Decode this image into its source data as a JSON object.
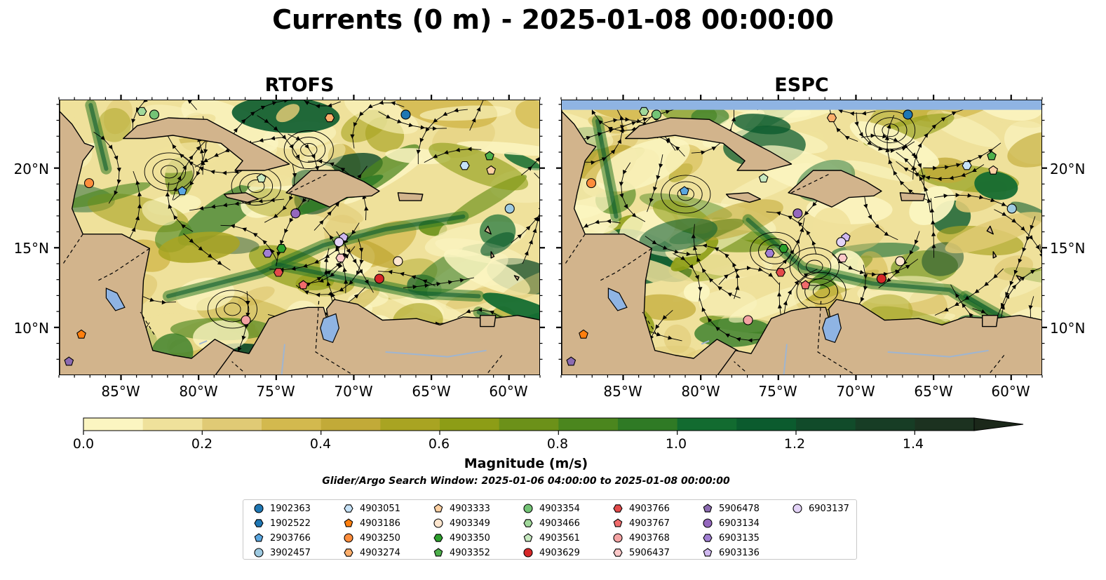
{
  "title": "Currents (0 m) - 2025-01-08 00:00:00",
  "panels": [
    {
      "title": "RTOFS",
      "model": "rtofs"
    },
    {
      "title": "ESPC",
      "model": "espc"
    }
  ],
  "map_extent": {
    "lon": [
      -89,
      -58
    ],
    "lat": [
      7,
      24.3
    ]
  },
  "x_ticks": [
    {
      "value": -85,
      "label": "85°W"
    },
    {
      "value": -80,
      "label": "80°W"
    },
    {
      "value": -75,
      "label": "75°W"
    },
    {
      "value": -70,
      "label": "70°W"
    },
    {
      "value": -65,
      "label": "65°W"
    },
    {
      "value": -60,
      "label": "60°W"
    }
  ],
  "y_ticks": [
    {
      "value": 20,
      "label": "20°N"
    },
    {
      "value": 15,
      "label": "15°N"
    },
    {
      "value": 10,
      "label": "10°N"
    }
  ],
  "colorbar": {
    "label": "Magnitude (m/s)",
    "range": [
      0,
      1.5
    ],
    "extend": "max",
    "ticks": [
      "0.0",
      "0.2",
      "0.4",
      "0.6",
      "0.8",
      "1.0",
      "1.2",
      "1.4"
    ],
    "colors": [
      "#fbf5c1",
      "#efe19b",
      "#e0ca75",
      "#d3b94e",
      "#c2aa38",
      "#a9a422",
      "#8d9d16",
      "#6c9119",
      "#4b861e",
      "#2f7a25",
      "#126b30",
      "#0b5b2e",
      "#114b2a",
      "#173d25",
      "#1c3220",
      "#1b281a"
    ]
  },
  "search_window": "Glider/Argo Search Window: 2025-01-06 04:00:00 to 2025-01-08 00:00:00",
  "colors": {
    "land": "#d2b48c",
    "water_feature": "#8fb4e3",
    "rivers": "#9fb5d0"
  },
  "floats": [
    {
      "id": "1902363",
      "marker": "circle",
      "color": "#1f77b4",
      "lon": -66.7,
      "lat": 23.4
    },
    {
      "id": "1902522",
      "marker": "hexagon",
      "color": "#1f77b4",
      "lon": null,
      "lat": null
    },
    {
      "id": "2903766",
      "marker": "pentagon",
      "color": "#5aa6e0",
      "lon": -81.1,
      "lat": 18.6
    },
    {
      "id": "3902457",
      "marker": "circle",
      "color": "#9ecae1",
      "lon": -60.0,
      "lat": 17.5
    },
    {
      "id": "4903051",
      "marker": "hexagon",
      "color": "#c6e2f7",
      "lon": -62.9,
      "lat": 20.2
    },
    {
      "id": "4903186",
      "marker": "pentagon",
      "color": "#ff7f0e",
      "lon": -87.6,
      "lat": 9.6
    },
    {
      "id": "4903250",
      "marker": "circle",
      "color": "#fd8d3c",
      "lon": -87.1,
      "lat": 19.1
    },
    {
      "id": "4903274",
      "marker": "hexagon",
      "color": "#fdae6b",
      "lon": -71.6,
      "lat": 23.2
    },
    {
      "id": "4903333",
      "marker": "pentagon",
      "color": "#fdd0a2",
      "lon": -61.2,
      "lat": 19.9
    },
    {
      "id": "4903349",
      "marker": "circle",
      "color": "#fee6ce",
      "lon": -67.2,
      "lat": 14.2
    },
    {
      "id": "4903350",
      "marker": "hexagon",
      "color": "#2ca02c",
      "lon": -74.7,
      "lat": 15.0
    },
    {
      "id": "4903352",
      "marker": "pentagon",
      "color": "#4daf4a",
      "lon": -61.3,
      "lat": 20.8
    },
    {
      "id": "4903354",
      "marker": "circle",
      "color": "#74c476",
      "lon": -82.9,
      "lat": 23.4
    },
    {
      "id": "4903466",
      "marker": "hexagon",
      "color": "#a1d99b",
      "lon": -83.7,
      "lat": 23.6
    },
    {
      "id": "4903561",
      "marker": "pentagon",
      "color": "#c7e9c0",
      "lon": -76.0,
      "lat": 19.4
    },
    {
      "id": "4903629",
      "marker": "circle",
      "color": "#d62728",
      "lon": -68.4,
      "lat": 13.1
    },
    {
      "id": "4903766",
      "marker": "hexagon",
      "color": "#e34a4a",
      "lon": -74.9,
      "lat": 13.5
    },
    {
      "id": "4903767",
      "marker": "pentagon",
      "color": "#f06b6b",
      "lon": -73.3,
      "lat": 12.7
    },
    {
      "id": "4903768",
      "marker": "circle",
      "color": "#f4a3a3",
      "lon": -77.0,
      "lat": 10.5
    },
    {
      "id": "5906437",
      "marker": "hexagon",
      "color": "#fcc8c8",
      "lon": -70.9,
      "lat": 14.4
    },
    {
      "id": "5906478",
      "marker": "pentagon",
      "color": "#8c6bb1",
      "lon": -88.4,
      "lat": 7.9
    },
    {
      "id": "6903134",
      "marker": "circle",
      "color": "#9467bd",
      "lon": -73.8,
      "lat": 17.2
    },
    {
      "id": "6903135",
      "marker": "hexagon",
      "color": "#a17fd3",
      "lon": -75.6,
      "lat": 14.7
    },
    {
      "id": "6903136",
      "marker": "pentagon",
      "color": "#cfb8ef",
      "lon": -70.7,
      "lat": 15.7
    },
    {
      "id": "6903137",
      "marker": "circle",
      "color": "#e3d3f7",
      "lon": -71.0,
      "lat": 15.4
    }
  ]
}
